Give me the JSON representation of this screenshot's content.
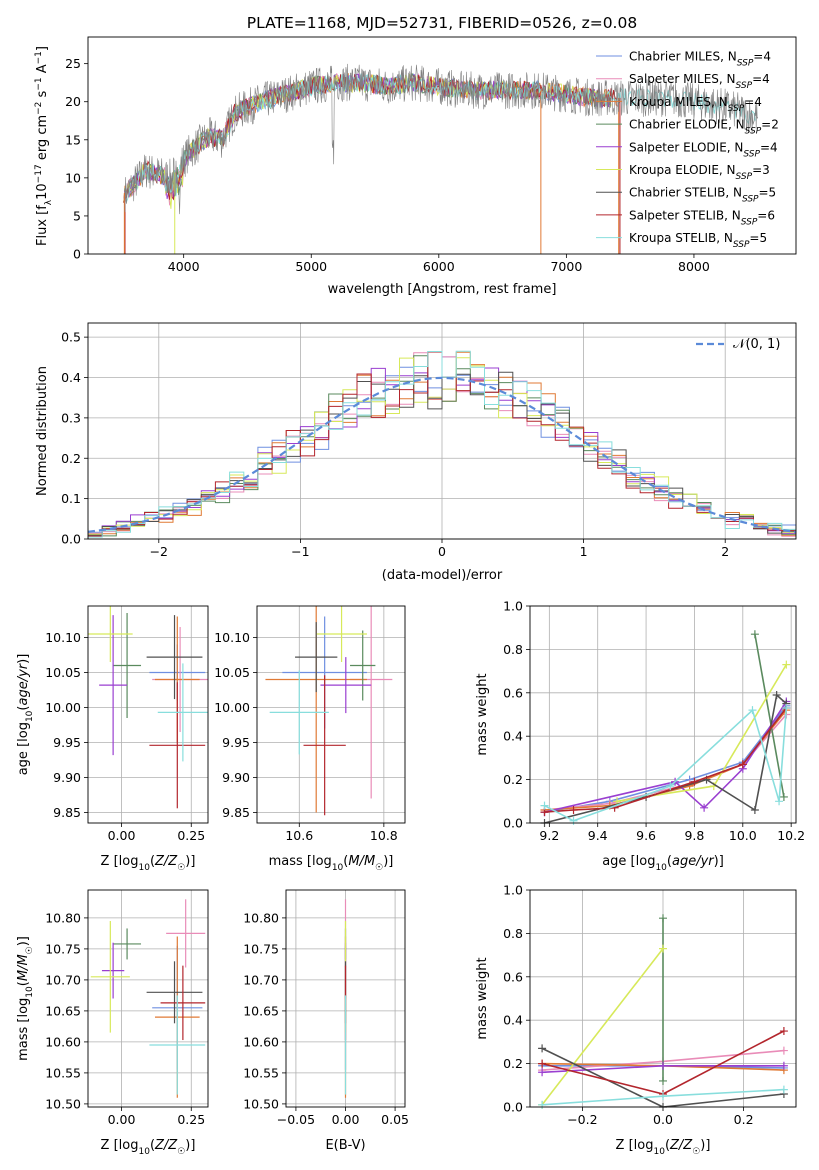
{
  "colors": [
    "#6f8fe0",
    "#e98cb8",
    "#e07a35",
    "#5a8a5e",
    "#9a3fd0",
    "#d7e95a",
    "#505050",
    "#b3262d",
    "#88dedd"
  ],
  "chart_data": [
    {
      "id": "spectrum",
      "type": "line",
      "title": "PLATE=1168, MJD=52731, FIBERID=0526, z=0.08",
      "xlabel": "wavelength [Angstrom, rest frame]",
      "ylabel": "Flux [f_λ 10^-17 erg cm^-2 s^-1 A^-1]",
      "xlim": [
        3250,
        8800
      ],
      "ylim": [
        0,
        28.5
      ],
      "xticks": [
        "4000",
        "5000",
        "6000",
        "7000",
        "8000"
      ],
      "yticks": [
        "0",
        "5",
        "10",
        "15",
        "20",
        "25"
      ],
      "grid": false,
      "legend_position": "top-right",
      "legend": [
        "Chabrier MILES, N_SSP=4",
        "Salpeter MILES, N_SSP=4",
        "Kroupa MILES, N_SSP=4",
        "Chabrier ELODIE, N_SSP=2",
        "Salpeter ELODIE, N_SSP=4",
        "Kroupa ELODIE, N_SSP=3",
        "Chabrier STELIB, N_SSP=5",
        "Salpeter STELIB, N_SSP=6",
        "Kroupa STELIB, N_SSP=5"
      ],
      "data_envelope": {
        "x": [
          3550,
          3700,
          3900,
          4050,
          4200,
          4300,
          4400,
          4600,
          4800,
          5000,
          5200,
          5400,
          5600,
          5800,
          6000,
          6200,
          6500,
          6800,
          7000,
          7200,
          7400,
          7600,
          7800,
          8000,
          8200,
          8400,
          8500
        ],
        "y": [
          8,
          11,
          10,
          13.5,
          15.5,
          15,
          18.5,
          20,
          21,
          22,
          22.5,
          22.5,
          22,
          22.5,
          22,
          21.5,
          21.5,
          21.5,
          21,
          20.5,
          20.5,
          20.5,
          20.5,
          20,
          19.5,
          18.5,
          18
        ]
      }
    },
    {
      "id": "residuals",
      "type": "line",
      "xlabel": "(data-model)/error",
      "ylabel": "Normed distribution",
      "xlim": [
        -2.5,
        2.5
      ],
      "ylim": [
        0,
        0.535
      ],
      "xticks": [
        "−2",
        "−1",
        "0",
        "1",
        "2"
      ],
      "yticks": [
        "0.0",
        "0.1",
        "0.2",
        "0.3",
        "0.4",
        "0.5"
      ],
      "grid": true,
      "legend_position": "top-right",
      "legend": [
        "𝒩(0, 1)"
      ],
      "normal_curve": {
        "mean": 0,
        "sigma": 1
      }
    },
    {
      "id": "age-vs-Z",
      "type": "scatter",
      "xlabel": "Z [log10(Z/Z☉)]",
      "ylabel": "age [log10(age/yr)]",
      "xlim": [
        -0.12,
        0.31
      ],
      "ylim": [
        9.835,
        10.145
      ],
      "xticks": [
        "0.00",
        "0.25"
      ],
      "yticks": [
        "9.85",
        "9.90",
        "9.95",
        "10.00",
        "10.05",
        "10.10"
      ],
      "grid": true,
      "points": [
        {
          "x": 0.2,
          "y": 10.05,
          "xerr": 0.1,
          "yerr": 0.04
        },
        {
          "x": 0.21,
          "y": 10.04,
          "xerr": 0.1,
          "yerr": 0.075
        },
        {
          "x": 0.2,
          "y": 10.04,
          "xerr": 0.08,
          "yerr": 0.09
        },
        {
          "x": 0.02,
          "y": 10.06,
          "xerr": 0.05,
          "yerr": 0.075
        },
        {
          "x": -0.03,
          "y": 10.032,
          "xerr": 0.05,
          "yerr": 0.1
        },
        {
          "x": -0.04,
          "y": 10.105,
          "xerr": 0.08,
          "yerr": 0.04
        },
        {
          "x": 0.19,
          "y": 10.072,
          "xerr": 0.1,
          "yerr": 0.06
        },
        {
          "x": 0.2,
          "y": 9.946,
          "xerr": 0.1,
          "yerr": 0.09
        },
        {
          "x": 0.22,
          "y": 9.993,
          "xerr": 0.09,
          "yerr": 0.07
        }
      ]
    },
    {
      "id": "age-vs-mass",
      "type": "scatter",
      "xlabel": "mass [log10(M/M☉)]",
      "xlim": [
        10.5,
        10.85
      ],
      "ylim": [
        9.835,
        10.145
      ],
      "xticks": [
        "10.6",
        "10.8"
      ],
      "yticks": [
        "9.85",
        "9.90",
        "9.95",
        "10.00",
        "10.05",
        "10.10"
      ],
      "grid": true,
      "points": [
        {
          "x": 10.66,
          "y": 10.05,
          "xerr": 0.1,
          "yerr": 0.08
        },
        {
          "x": 10.77,
          "y": 10.04,
          "xerr": 0.05,
          "yerr": 0.17
        },
        {
          "x": 10.64,
          "y": 10.04,
          "xerr": 0.12,
          "yerr": 0.19
        },
        {
          "x": 10.75,
          "y": 10.06,
          "xerr": 0.03,
          "yerr": 0.05
        },
        {
          "x": 10.71,
          "y": 10.032,
          "xerr": 0.06,
          "yerr": 0.04
        },
        {
          "x": 10.7,
          "y": 10.105,
          "xerr": 0.06,
          "yerr": 0.04
        },
        {
          "x": 10.64,
          "y": 10.072,
          "xerr": 0.05,
          "yerr": 0.05
        },
        {
          "x": 10.66,
          "y": 9.946,
          "xerr": 0.05,
          "yerr": 0.1
        },
        {
          "x": 10.6,
          "y": 9.993,
          "xerr": 0.07,
          "yerr": 0.06
        }
      ]
    },
    {
      "id": "weight-vs-age",
      "type": "line",
      "xlabel": "age [log10(age/yr)]",
      "ylabel": "mass weight",
      "xlim": [
        9.12,
        10.22
      ],
      "ylim": [
        0,
        1.0
      ],
      "xticks": [
        "9.2",
        "9.4",
        "9.6",
        "9.8",
        "10.0",
        "10.2"
      ],
      "yticks": [
        "0.0",
        "0.2",
        "0.4",
        "0.6",
        "0.8",
        "1.0"
      ],
      "grid": true,
      "series": [
        {
          "x": [
            9.18,
            9.45,
            9.78,
            10.0,
            10.18
          ],
          "y": [
            0.05,
            0.1,
            0.2,
            0.28,
            0.54
          ]
        },
        {
          "x": [
            9.18,
            9.45,
            9.78,
            10.0,
            10.18
          ],
          "y": [
            0.06,
            0.09,
            0.18,
            0.27,
            0.5
          ]
        },
        {
          "x": [
            9.18,
            9.45,
            9.78,
            10.0,
            10.18
          ],
          "y": [
            0.06,
            0.08,
            0.17,
            0.27,
            0.52
          ]
        },
        {
          "x": [
            10.05,
            10.17
          ],
          "y": [
            0.87,
            0.12
          ]
        },
        {
          "x": [
            9.18,
            9.72,
            9.84,
            10.0,
            10.18
          ],
          "y": [
            0.05,
            0.19,
            0.07,
            0.25,
            0.56
          ]
        },
        {
          "x": [
            9.48,
            9.88,
            10.18
          ],
          "y": [
            0.1,
            0.17,
            0.73
          ]
        },
        {
          "x": [
            9.18,
            9.6,
            9.85,
            10.05,
            10.14,
            10.18
          ],
          "y": [
            0.0,
            0.12,
            0.2,
            0.06,
            0.59,
            0.55
          ]
        },
        {
          "x": [
            9.18,
            9.3,
            9.47,
            9.8,
            10.0,
            10.18
          ],
          "y": [
            0.05,
            0.06,
            0.07,
            0.19,
            0.27,
            0.53
          ]
        },
        {
          "x": [
            9.18,
            9.3,
            9.7,
            10.04,
            10.15,
            10.18
          ],
          "y": [
            0.08,
            0.01,
            0.17,
            0.52,
            0.1,
            0.53
          ]
        }
      ]
    },
    {
      "id": "mass-vs-Z",
      "type": "scatter",
      "xlabel": "Z [log10(Z/Z☉)]",
      "ylabel": "mass [log10(M/M☉)]",
      "xlim": [
        -0.12,
        0.31
      ],
      "ylim": [
        10.495,
        10.845
      ],
      "xticks": [
        "0.00",
        "0.25"
      ],
      "yticks": [
        "10.50",
        "10.55",
        "10.60",
        "10.65",
        "10.70",
        "10.75",
        "10.80"
      ],
      "grid": true,
      "points": [
        {
          "x": 0.2,
          "y": 10.655,
          "xerr": 0.09,
          "yerr": 0.1
        },
        {
          "x": 0.23,
          "y": 10.775,
          "xerr": 0.07,
          "yerr": 0.055
        },
        {
          "x": 0.2,
          "y": 10.64,
          "xerr": 0.08,
          "yerr": 0.13
        },
        {
          "x": 0.02,
          "y": 10.758,
          "xerr": 0.05,
          "yerr": 0.025
        },
        {
          "x": -0.03,
          "y": 10.715,
          "xerr": 0.04,
          "yerr": 0.045
        },
        {
          "x": -0.04,
          "y": 10.705,
          "xerr": 0.07,
          "yerr": 0.09
        },
        {
          "x": 0.19,
          "y": 10.68,
          "xerr": 0.1,
          "yerr": 0.05
        },
        {
          "x": 0.22,
          "y": 10.663,
          "xerr": 0.08,
          "yerr": 0.06
        },
        {
          "x": 0.2,
          "y": 10.595,
          "xerr": 0.1,
          "yerr": 0.08
        }
      ]
    },
    {
      "id": "mass-vs-EBV",
      "type": "scatter",
      "xlabel": "E(B-V)",
      "xlim": [
        -0.06,
        0.06
      ],
      "ylim": [
        10.495,
        10.845
      ],
      "xticks": [
        "−0.05",
        "0.00",
        "0.05"
      ],
      "yticks": [
        "10.50",
        "10.55",
        "10.60",
        "10.65",
        "10.70",
        "10.75",
        "10.80"
      ],
      "grid": true,
      "points": [
        {
          "x": 0,
          "y": 10.655,
          "yerr": 0.1
        },
        {
          "x": 0,
          "y": 10.775,
          "yerr": 0.055
        },
        {
          "x": 0,
          "y": 10.64,
          "yerr": 0.13
        },
        {
          "x": 0,
          "y": 10.758,
          "yerr": 0.025
        },
        {
          "x": 0,
          "y": 10.715,
          "yerr": 0.045
        },
        {
          "x": 0,
          "y": 10.705,
          "yerr": 0.09
        },
        {
          "x": 0,
          "y": 10.68,
          "yerr": 0.05
        },
        {
          "x": 0,
          "y": 10.663,
          "yerr": 0.06
        },
        {
          "x": 0,
          "y": 10.595,
          "yerr": 0.08
        }
      ]
    },
    {
      "id": "weight-vs-Z",
      "type": "line",
      "xlabel": "Z [log10(Z/Z☉)]",
      "ylabel": "mass weight",
      "xlim": [
        -0.33,
        0.33
      ],
      "ylim": [
        0,
        1.0
      ],
      "xticks": [
        "−0.2",
        "0.0",
        "0.2"
      ],
      "yticks": [
        "0.0",
        "0.2",
        "0.4",
        "0.6",
        "0.8",
        "1.0"
      ],
      "grid": true,
      "series": [
        {
          "x": [
            -0.3,
            0.0,
            0.3
          ],
          "y": [
            0.19,
            0.19,
            0.18
          ]
        },
        {
          "x": [
            -0.3,
            0.0,
            0.3
          ],
          "y": [
            0.17,
            0.21,
            0.26
          ]
        },
        {
          "x": [
            -0.3,
            0.0,
            0.3
          ],
          "y": [
            0.2,
            0.19,
            0.17
          ]
        },
        {
          "x": [
            0.0,
            0.0
          ],
          "y": [
            0.12,
            0.87
          ]
        },
        {
          "x": [
            -0.3,
            0.0,
            0.3
          ],
          "y": [
            0.16,
            0.19,
            0.19
          ]
        },
        {
          "x": [
            -0.3,
            0.0
          ],
          "y": [
            0.01,
            0.73
          ]
        },
        {
          "x": [
            -0.3,
            0.0,
            0.3
          ],
          "y": [
            0.27,
            0.0,
            0.06
          ]
        },
        {
          "x": [
            -0.3,
            0.0,
            0.3
          ],
          "y": [
            0.2,
            0.06,
            0.35
          ]
        },
        {
          "x": [
            -0.3,
            0.0,
            0.3
          ],
          "y": [
            0.01,
            0.05,
            0.08
          ]
        }
      ]
    }
  ]
}
